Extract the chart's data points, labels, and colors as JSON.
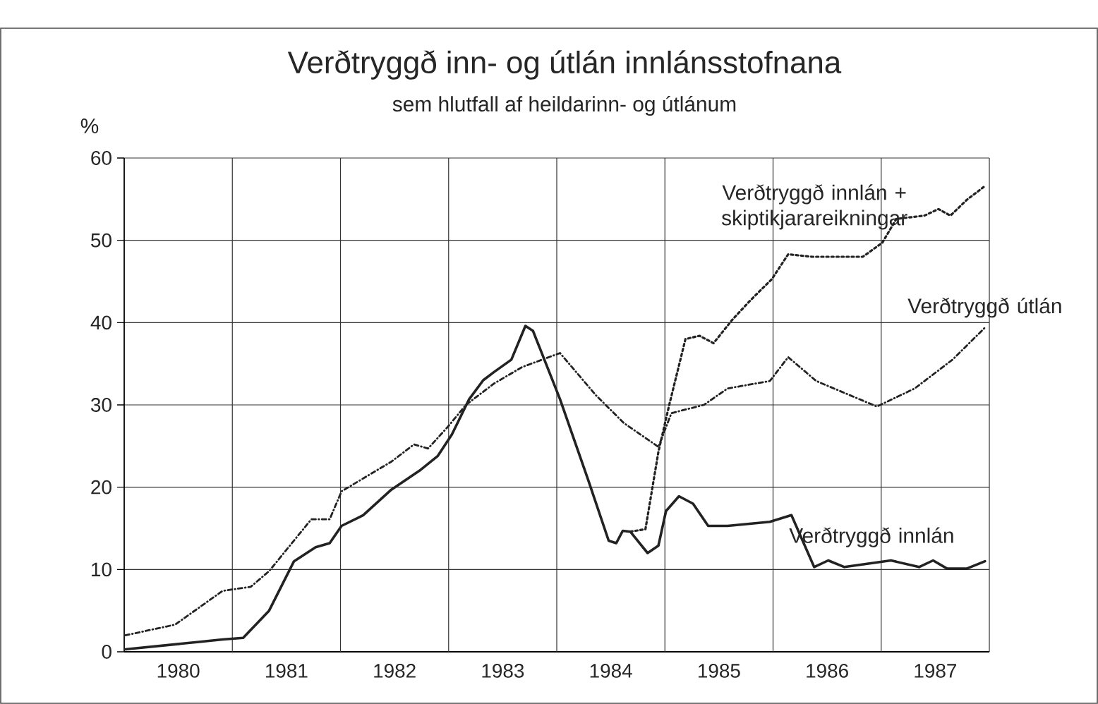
{
  "chart_data": {
    "type": "line",
    "title": "Verðtryggð inn- og útlán innlánsstofnana",
    "subtitle": "sem hlutfall af heildarinn- og útlánum",
    "ylabel": "%",
    "xlim": [
      1980,
      1988
    ],
    "ylim": [
      0,
      60
    ],
    "yticks": [
      0,
      10,
      20,
      30,
      40,
      50,
      60
    ],
    "xticks": [
      {
        "value": 1980.5,
        "label": "1980"
      },
      {
        "value": 1981,
        "label": null
      },
      {
        "value": 1981.5,
        "label": "1981"
      },
      {
        "value": 1982,
        "label": null
      },
      {
        "value": 1982.5,
        "label": "1982"
      },
      {
        "value": 1983,
        "label": null
      },
      {
        "value": 1983.5,
        "label": "1983"
      },
      {
        "value": 1984,
        "label": null
      },
      {
        "value": 1984.5,
        "label": "1984"
      },
      {
        "value": 1985,
        "label": null
      },
      {
        "value": 1985.5,
        "label": "1985"
      },
      {
        "value": 1986,
        "label": null
      },
      {
        "value": 1986.5,
        "label": "1986"
      },
      {
        "value": 1987,
        "label": null
      },
      {
        "value": 1987.5,
        "label": "1987"
      },
      {
        "value": 1988,
        "label": null
      }
    ],
    "grid": true,
    "series": [
      {
        "name": "Verðtryggð innlán",
        "color": "#222222",
        "line_style": "solid",
        "x": [
          1980.01,
          1980.69,
          1980.91,
          1981.1,
          1981.34,
          1981.57,
          1981.77,
          1981.9,
          1982.01,
          1982.21,
          1982.47,
          1982.73,
          1982.9,
          1983.03,
          1983.19,
          1983.32,
          1983.42,
          1983.58,
          1983.71,
          1983.78,
          1984.03,
          1984.29,
          1984.48,
          1984.55,
          1984.61,
          1984.68,
          1984.84,
          1984.94,
          1985.01,
          1985.13,
          1985.26,
          1985.4,
          1985.58,
          1985.97,
          1986.17,
          1986.38,
          1986.51,
          1986.66,
          1987.09,
          1987.35,
          1987.48,
          1987.61,
          1987.79,
          1987.96
        ],
        "values": [
          0.3,
          1.2,
          1.5,
          1.7,
          5,
          11,
          12.7,
          13.2,
          15.3,
          16.6,
          19.7,
          22,
          23.8,
          26.4,
          30.7,
          33,
          34,
          35.5,
          39.6,
          39,
          30.7,
          20.9,
          13.5,
          13.2,
          14.7,
          14.6,
          12,
          12.9,
          17.1,
          18.9,
          18,
          15.3,
          15.3,
          15.8,
          16.6,
          10.3,
          11.1,
          10.3,
          11.1,
          10.3,
          11.1,
          10.1,
          10.1,
          11
        ]
      },
      {
        "name": "Verðtryggð útlán",
        "color": "#222222",
        "line_style": "dashdot",
        "x": [
          1980.01,
          1980.47,
          1980.91,
          1981.17,
          1981.34,
          1981.73,
          1981.9,
          1982.01,
          1982.47,
          1982.68,
          1982.81,
          1982.99,
          1983.16,
          1983.42,
          1983.68,
          1984.03,
          1984.36,
          1984.62,
          1984.94,
          1985.06,
          1985.36,
          1985.58,
          1985.97,
          1986.14,
          1986.4,
          1986.96,
          1987.31,
          1987.66,
          1987.96
        ],
        "values": [
          2,
          3.3,
          7.4,
          7.9,
          9.8,
          16.1,
          16.1,
          19.5,
          23.1,
          25.2,
          24.7,
          27.3,
          30,
          32.6,
          34.6,
          36.3,
          31.2,
          27.8,
          24.9,
          29,
          30,
          32,
          32.9,
          35.8,
          32.9,
          29.8,
          32,
          35.5,
          39.4
        ]
      },
      {
        "name": "Verðtryggð innlán + skiptikjarareikningar",
        "color": "#222222",
        "line_style": "dotted",
        "x": [
          1984.68,
          1984.82,
          1984.94,
          1985.04,
          1985.19,
          1985.32,
          1985.45,
          1985.62,
          1985.79,
          1985.99,
          1986.14,
          1986.36,
          1986.83,
          1987.01,
          1987.14,
          1987.4,
          1987.53,
          1987.64,
          1987.79,
          1987.96
        ],
        "values": [
          14.6,
          14.9,
          24.3,
          30,
          38,
          38.4,
          37.5,
          40.3,
          42.7,
          45.3,
          48.3,
          48,
          48,
          49.7,
          52.6,
          53,
          53.8,
          53,
          54.9,
          56.6
        ]
      }
    ]
  }
}
